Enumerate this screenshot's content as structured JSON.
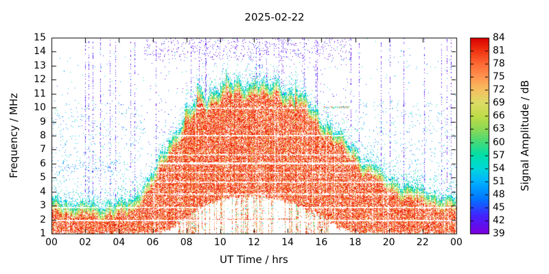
{
  "chart_data": {
    "type": "heatmap",
    "title": "2025-02-22",
    "xlabel": "UT Time / hrs",
    "ylabel": "Frequency / MHz",
    "xlim": [
      0,
      24
    ],
    "ylim": [
      1,
      15
    ],
    "xtick_hours": [
      0,
      2,
      4,
      6,
      8,
      10,
      12,
      14,
      16,
      18,
      20,
      22,
      24
    ],
    "xtick_labels": [
      "00",
      "02",
      "04",
      "06",
      "08",
      "10",
      "12",
      "14",
      "16",
      "18",
      "20",
      "22",
      "00"
    ],
    "ytick_values": [
      1,
      2,
      3,
      4,
      5,
      6,
      7,
      8,
      9,
      10,
      11,
      12,
      13,
      14,
      15
    ],
    "colorbar": {
      "label": "Signal Amplitude / dB",
      "min": 39,
      "max": 84,
      "tick_values": [
        39,
        42,
        45,
        48,
        51,
        54,
        57,
        60,
        63,
        66,
        69,
        72,
        75,
        78,
        81,
        84
      ]
    },
    "colormap_stops": [
      [
        39,
        "#7a00e0"
      ],
      [
        43,
        "#4422ff"
      ],
      [
        47,
        "#0077ff"
      ],
      [
        51,
        "#00b4ff"
      ],
      [
        54,
        "#00d8d8"
      ],
      [
        57,
        "#00dfa8"
      ],
      [
        60,
        "#44da78"
      ],
      [
        63,
        "#8cd955"
      ],
      [
        66,
        "#c0dc48"
      ],
      [
        69,
        "#dcdc66"
      ],
      [
        72,
        "#f5c060"
      ],
      [
        75,
        "#ff9550"
      ],
      [
        78,
        "#ff6a35"
      ],
      [
        81,
        "#f03512"
      ],
      [
        84,
        "#d90000"
      ]
    ],
    "envelope": {
      "hours": [
        0,
        1,
        2,
        3,
        4,
        5,
        6,
        7,
        8,
        9,
        10,
        11,
        12,
        13,
        14,
        15,
        16,
        17,
        18,
        19,
        20,
        21,
        22,
        23,
        24
      ],
      "top_mhz": [
        3.4,
        3.2,
        3.1,
        3.0,
        3.1,
        3.6,
        5.5,
        7.6,
        9.6,
        11.0,
        11.7,
        11.6,
        11.8,
        11.6,
        11.2,
        10.6,
        9.3,
        8.2,
        7.0,
        6.0,
        5.0,
        4.5,
        4.0,
        3.7,
        3.5
      ],
      "bottom_mhz": [
        1.0,
        1.0,
        1.0,
        1.0,
        1.0,
        1.0,
        1.0,
        1.2,
        2.2,
        3.0,
        3.4,
        3.6,
        3.7,
        3.6,
        3.3,
        2.8,
        2.2,
        1.4,
        1.0,
        1.0,
        1.0,
        1.0,
        1.0,
        1.0,
        1.0
      ]
    },
    "gap_lines": [
      {
        "mhz": 1.9,
        "strength": 0.15,
        "halfwidth": 0.05
      },
      {
        "mhz": 2.85,
        "strength": 0.18,
        "halfwidth": 0.05
      },
      {
        "mhz": 3.8,
        "strength": 0.4,
        "halfwidth": 0.05
      },
      {
        "mhz": 4.65,
        "strength": 0.22,
        "halfwidth": 0.05
      },
      {
        "mhz": 5.35,
        "strength": 0.5,
        "halfwidth": 0.05
      },
      {
        "mhz": 6.0,
        "strength": 0.12,
        "halfwidth": 0.07
      },
      {
        "mhz": 6.62,
        "strength": 0.35,
        "halfwidth": 0.05
      },
      {
        "mhz": 8.0,
        "strength": 0.15,
        "halfwidth": 0.07
      },
      {
        "mhz": 9.95,
        "strength": 0.4,
        "halfwidth": 0.05
      }
    ],
    "description": "HF spectrogram for 2025-02-22: high-amplitude red region (~75-84 dB) forms a dome from ~06 to ~18 UT rising from ~3 MHz up to a peak of ~12 MHz near 10-13 UT with a cyan/green speckled upper edge; night-time band of ~1-3.5 MHz red signal before 06 and after 18 UT; thin white horizontal interference gaps across the band; sparse blue/cyan noise speckles at 3-10 MHz at night and sparse purple speckles above the dome up to 15 MHz during 06-18 UT."
  }
}
